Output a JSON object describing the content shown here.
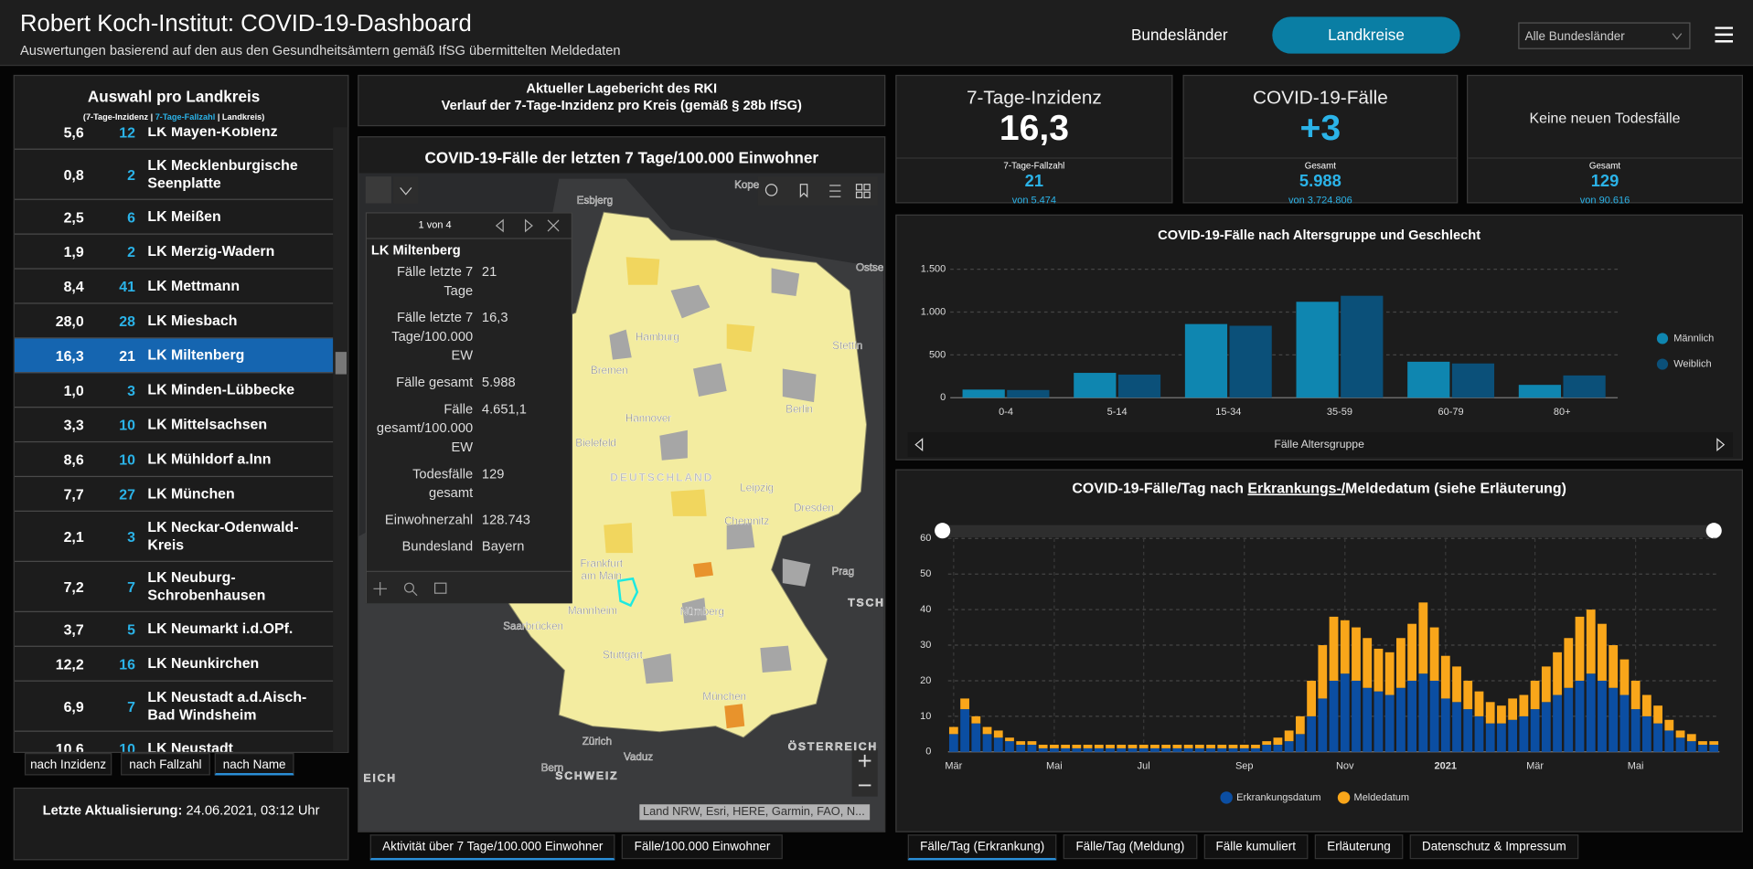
{
  "header": {
    "title": "Robert Koch-Institut: COVID-19-Dashboard",
    "subtitle": "Auswertungen basierend auf den aus den Gesundheitsämtern gemäß IfSG übermittelten Meldedaten",
    "nav": [
      "Bundesländer",
      "Landkreise"
    ],
    "dropdown": "Alle Bundesländer"
  },
  "district_list": {
    "title": "Auswahl pro Landkreis",
    "legend_parts": [
      "(7-Tage-Inzidenz | ",
      "7-Tage-Fallzahl",
      " | Landkreis)"
    ],
    "rows": [
      {
        "incidence": "5,6",
        "cases": 12,
        "name": "LK Mayen-Koblenz"
      },
      {
        "incidence": "0,8",
        "cases": 2,
        "name": "LK Mecklenburgische Seenplatte"
      },
      {
        "incidence": "2,5",
        "cases": 6,
        "name": "LK Meißen"
      },
      {
        "incidence": "1,9",
        "cases": 2,
        "name": "LK Merzig-Wadern"
      },
      {
        "incidence": "8,4",
        "cases": 41,
        "name": "LK Mettmann"
      },
      {
        "incidence": "28,0",
        "cases": 28,
        "name": "LK Miesbach"
      },
      {
        "incidence": "16,3",
        "cases": 21,
        "name": "LK Miltenberg"
      },
      {
        "incidence": "1,0",
        "cases": 3,
        "name": "LK Minden-Lübbecke"
      },
      {
        "incidence": "3,3",
        "cases": 10,
        "name": "LK Mittelsachsen"
      },
      {
        "incidence": "8,6",
        "cases": 10,
        "name": "LK Mühldorf a.Inn"
      },
      {
        "incidence": "7,7",
        "cases": 27,
        "name": "LK München"
      },
      {
        "incidence": "2,1",
        "cases": 3,
        "name": "LK Neckar-Odenwald-Kreis"
      },
      {
        "incidence": "7,2",
        "cases": 7,
        "name": "LK Neuburg-Schrobenhausen"
      },
      {
        "incidence": "3,7",
        "cases": 5,
        "name": "LK Neumarkt i.d.OPf."
      },
      {
        "incidence": "12,2",
        "cases": 16,
        "name": "LK Neunkirchen"
      },
      {
        "incidence": "6,9",
        "cases": 7,
        "name": "LK Neustadt a.d.Aisch-Bad Windsheim"
      },
      {
        "incidence": "10,6",
        "cases": 10,
        "name": "LK Neustadt"
      }
    ],
    "sort_buttons": [
      "nach Inzidenz",
      "nach Fallzahl",
      "nach Name"
    ],
    "last_update": {
      "label": "Letzte Aktualisierung:",
      "value": "24.06.2021, 03:12 Uhr"
    }
  },
  "report": {
    "line1": "Aktueller Lagebericht des RKI",
    "line2": "Verlauf der 7-Tage-Inzidenz pro Kreis (gemäß § 28b IfSG)"
  },
  "map": {
    "title": "COVID-19-Fälle der letzten 7 Tage/100.000 Einwohner",
    "popup": {
      "pager": "1 von 4",
      "name": "LK Miltenberg",
      "fields": [
        {
          "label": "Fälle letzte 7 Tage",
          "value": "21"
        },
        {
          "label": "Fälle letzte 7 Tage/100.000 EW",
          "value": "16,3"
        },
        {
          "label": "Fälle gesamt",
          "value": "5.988"
        },
        {
          "label": "Fälle gesamt/100.000 EW",
          "value": "4.651,1"
        },
        {
          "label": "Todesfälle gesamt",
          "value": "129"
        },
        {
          "label": "Einwohnerzahl",
          "value": "128.743"
        },
        {
          "label": "Bundesland",
          "value": "Bayern"
        }
      ]
    },
    "labels": [
      "Esbjerg",
      "Kope",
      "Ostse",
      "Stettin",
      "Hamburg",
      "Bremen",
      "Hannover",
      "Berlin",
      "Bielefeld",
      "DEUTSCHLAND",
      "Leipzig",
      "Dresden",
      "Chemnitz",
      "Frankfurt",
      "am Main",
      "Prag",
      "TSCH",
      "Nürnberg",
      "Mannheim",
      "Saarbrücken",
      "Stuttgart",
      "München",
      "Zürich",
      "Vaduz",
      "ÖSTERREICH",
      "Bern",
      "SCHWEIZ",
      "EICH"
    ],
    "attribution": "Land NRW, Esri, HERE, Garmin, FAO, N...",
    "tabs": [
      "Aktivität über 7 Tage/100.000 Einwohner",
      "Fälle/100.000 Einwohner"
    ]
  },
  "kpis": [
    {
      "title": "7-Tage-Inzidenz",
      "value": "16,3",
      "sub_label": "7-Tage-Fallzahl",
      "sub_value": "21",
      "sub_note": "von 5.474"
    },
    {
      "title": "COVID-19-Fälle",
      "value": "+3",
      "value_color": "#2bb3e8",
      "sub_label": "Gesamt",
      "sub_value": "5.988",
      "sub_note": "von 3.724.806"
    },
    {
      "title": "Keine neuen Todesfälle",
      "sub_label": "Gesamt",
      "sub_value": 129,
      "sub_note": "von 90.616"
    }
  ],
  "chart_data": [
    {
      "type": "bar",
      "title": "COVID-19-Fälle nach Altersgruppe und Geschlecht",
      "x_label": "Fälle Altersgruppe",
      "categories": [
        "0-4",
        "5-14",
        "15-34",
        "35-59",
        "60-79",
        "80+"
      ],
      "series": [
        {
          "name": "Männlich",
          "color": "#0f86b0",
          "values": [
            95,
            290,
            860,
            1120,
            420,
            150
          ]
        },
        {
          "name": "Weiblich",
          "color": "#0b5079",
          "values": [
            90,
            270,
            840,
            1190,
            400,
            260
          ]
        }
      ],
      "ylim": [
        0,
        1500
      ],
      "yticks": [
        0,
        500,
        {
          "value": 1000,
          "label": "1.000"
        },
        {
          "value": 1500,
          "label": "1.500"
        }
      ],
      "grid": true,
      "legend": "right"
    },
    {
      "type": "bar",
      "stacked": true,
      "title_parts": [
        "COVID-19-Fälle/Tag nach ",
        "Erkrankungs-/",
        "Meldedatum (siehe Erläuterung)"
      ],
      "categories": [
        "Mär",
        null,
        null,
        null,
        null,
        null,
        null,
        null,
        null,
        "Mai",
        null,
        null,
        null,
        null,
        null,
        null,
        null,
        "Jul",
        null,
        null,
        null,
        null,
        null,
        null,
        null,
        null,
        "Sep",
        null,
        null,
        null,
        null,
        null,
        null,
        null,
        null,
        "Nov",
        null,
        null,
        null,
        null,
        null,
        null,
        null,
        null,
        "2021",
        null,
        null,
        null,
        null,
        null,
        null,
        null,
        "Mär",
        null,
        null,
        null,
        null,
        null,
        null,
        null,
        null,
        "Mai",
        null,
        null,
        null,
        null,
        null,
        null,
        null
      ],
      "series": [
        {
          "name": "Erkrankungsdatum",
          "color": "#0b4ea2",
          "values": [
            5,
            12,
            8,
            5,
            4,
            3,
            2,
            2,
            1,
            1,
            1,
            1,
            1,
            1,
            1,
            1,
            1,
            1,
            1,
            1,
            1,
            1,
            1,
            1,
            1,
            1,
            1,
            1,
            2,
            2,
            3,
            5,
            10,
            15,
            20,
            22,
            20,
            18,
            17,
            16,
            18,
            20,
            22,
            20,
            15,
            14,
            12,
            10,
            8,
            8,
            9,
            10,
            12,
            14,
            16,
            18,
            20,
            22,
            20,
            18,
            16,
            12,
            10,
            8,
            6,
            4,
            3,
            2,
            2
          ]
        },
        {
          "name": "Meldedatum",
          "color": "#f9a61a",
          "values": [
            2,
            3,
            2,
            2,
            2,
            1,
            1,
            1,
            1,
            1,
            1,
            1,
            1,
            1,
            1,
            1,
            1,
            1,
            1,
            1,
            1,
            1,
            1,
            1,
            1,
            1,
            1,
            1,
            1,
            2,
            3,
            5,
            10,
            15,
            18,
            15,
            15,
            14,
            12,
            12,
            14,
            16,
            20,
            15,
            12,
            10,
            8,
            7,
            6,
            5,
            6,
            6,
            8,
            10,
            12,
            14,
            18,
            18,
            16,
            12,
            10,
            8,
            6,
            5,
            3,
            2,
            2,
            1,
            1
          ]
        }
      ],
      "ylim": [
        0,
        60
      ],
      "yticks": [
        0,
        10,
        20,
        30,
        40,
        50,
        60
      ],
      "grid": true,
      "legend": "bottom"
    }
  ],
  "bottom_tabs": [
    "Fälle/Tag (Erkrankung)",
    "Fälle/Tag (Meldung)",
    "Fälle kumuliert",
    "Erläuterung",
    "Datenschutz & Impressum"
  ]
}
